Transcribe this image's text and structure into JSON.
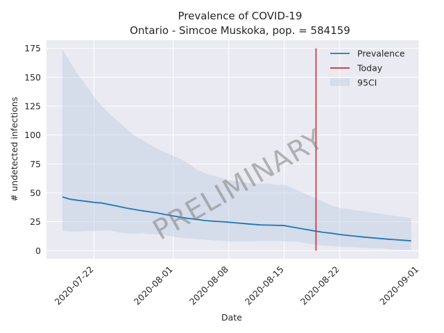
{
  "chart_data": {
    "type": "line",
    "title_line1": "Prevalence of COVID-19",
    "title_line2": "Ontario - Simcoe Muskoka, pop. = 584159",
    "xlabel": "Date",
    "ylabel": "# undetected infections",
    "x_axis_type": "date",
    "xlim": [
      "2020-07-16",
      "2020-09-01"
    ],
    "ylim": [
      -7,
      182
    ],
    "x_ticks": [
      "2020-07-22",
      "2020-08-01",
      "2020-08-08",
      "2020-08-15",
      "2020-08-22",
      "2020-09-01"
    ],
    "y_ticks": [
      0,
      25,
      50,
      75,
      100,
      125,
      150,
      175
    ],
    "grid": true,
    "legend_position": "top-right",
    "legend": [
      {
        "label": "Prevalence",
        "kind": "line",
        "color": "#1f77b4"
      },
      {
        "label": "Today",
        "kind": "line",
        "color": "#d62728"
      },
      {
        "label": "95CI",
        "kind": "band",
        "color": "#b0c4de"
      }
    ],
    "today": {
      "date": "2020-08-19",
      "y_range": [
        0,
        175
      ]
    },
    "series": [
      {
        "name": "Prevalence",
        "color": "#1f77b4",
        "x": [
          "2020-07-18",
          "2020-07-19",
          "2020-07-20",
          "2020-07-21",
          "2020-07-22",
          "2020-07-23",
          "2020-07-24",
          "2020-07-25",
          "2020-07-26",
          "2020-07-27",
          "2020-07-28",
          "2020-07-29",
          "2020-07-30",
          "2020-07-31",
          "2020-08-01",
          "2020-08-02",
          "2020-08-03",
          "2020-08-04",
          "2020-08-05",
          "2020-08-06",
          "2020-08-07",
          "2020-08-08",
          "2020-08-09",
          "2020-08-10",
          "2020-08-11",
          "2020-08-12",
          "2020-08-13",
          "2020-08-14",
          "2020-08-15",
          "2020-08-16",
          "2020-08-17",
          "2020-08-18",
          "2020-08-19",
          "2020-08-20",
          "2020-08-21",
          "2020-08-22",
          "2020-08-23",
          "2020-08-24",
          "2020-08-25",
          "2020-08-26",
          "2020-08-27",
          "2020-08-28",
          "2020-08-29",
          "2020-08-30",
          "2020-08-31"
        ],
        "values": [
          46.5,
          44.5,
          43.5,
          42.7,
          41.8,
          41.2,
          39.8,
          38.5,
          37.0,
          35.8,
          34.6,
          33.6,
          32.6,
          31.3,
          30.1,
          28.8,
          27.8,
          27.0,
          26.0,
          25.5,
          25.1,
          24.6,
          24.0,
          23.4,
          22.8,
          22.3,
          22.1,
          21.9,
          21.7,
          20.4,
          19.2,
          18.0,
          16.8,
          15.8,
          15.0,
          14.0,
          13.2,
          12.5,
          11.8,
          11.2,
          10.6,
          10.0,
          9.5,
          9.0,
          8.5
        ]
      },
      {
        "name": "95CI",
        "color": "#b0c4de",
        "x": [
          "2020-07-18",
          "2020-07-19",
          "2020-07-20",
          "2020-07-21",
          "2020-07-22",
          "2020-07-23",
          "2020-07-24",
          "2020-07-25",
          "2020-07-26",
          "2020-07-27",
          "2020-07-28",
          "2020-07-29",
          "2020-07-30",
          "2020-07-31",
          "2020-08-01",
          "2020-08-02",
          "2020-08-03",
          "2020-08-04",
          "2020-08-05",
          "2020-08-06",
          "2020-08-07",
          "2020-08-08",
          "2020-08-09",
          "2020-08-10",
          "2020-08-11",
          "2020-08-12",
          "2020-08-13",
          "2020-08-14",
          "2020-08-15",
          "2020-08-16",
          "2020-08-17",
          "2020-08-18",
          "2020-08-19",
          "2020-08-20",
          "2020-08-21",
          "2020-08-22",
          "2020-08-23",
          "2020-08-24",
          "2020-08-25",
          "2020-08-26",
          "2020-08-27",
          "2020-08-28",
          "2020-08-29",
          "2020-08-30",
          "2020-08-31"
        ],
        "lower": [
          17,
          16.5,
          16.5,
          17,
          17,
          17.5,
          17.5,
          16,
          15,
          14.5,
          15,
          14.5,
          14,
          13.5,
          12,
          11,
          10.5,
          10,
          9.5,
          9,
          8.5,
          8,
          8,
          8,
          8,
          8.5,
          8.5,
          8.5,
          8,
          8,
          7.5,
          6,
          5,
          4.5,
          4,
          3.5,
          3,
          3,
          2.5,
          2,
          2,
          1.5,
          1,
          1,
          0.5
        ],
        "upper": [
          174,
          163,
          152,
          143,
          133,
          125,
          118,
          112,
          106,
          100,
          96,
          92,
          88,
          85,
          82,
          79,
          75,
          70,
          67,
          65,
          63,
          61,
          60,
          59,
          58,
          58,
          58,
          57,
          57,
          54,
          51,
          48,
          45,
          42,
          39,
          37,
          36,
          35,
          34,
          33,
          32,
          31,
          30,
          29,
          28
        ]
      }
    ]
  },
  "watermark": "PRELIMINARY"
}
